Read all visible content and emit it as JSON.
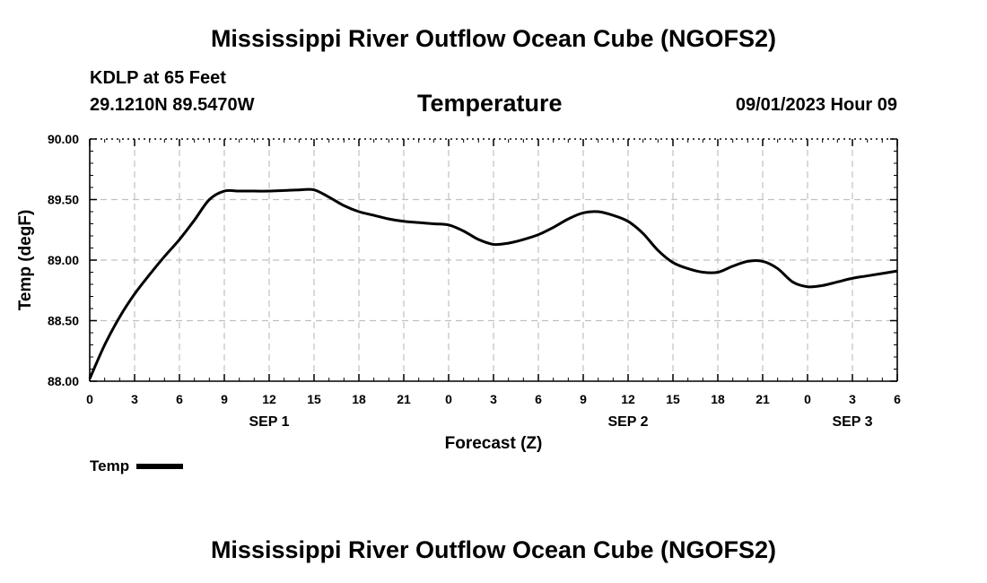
{
  "header": {
    "title": "Mississippi River Outflow Ocean Cube (NGOFS2)",
    "station": "KDLP at 65 Feet",
    "coords": "29.1210N  89.5470W",
    "subtitle": "Temperature",
    "datestamp": "09/01/2023 Hour 09"
  },
  "footer": {
    "title": "Mississippi River Outflow Ocean Cube (NGOFS2)"
  },
  "legend": {
    "label": "Temp"
  },
  "colors": {
    "line": "#000000",
    "grid": "#c0c0c0",
    "background": "#ffffff"
  },
  "chart_data": {
    "type": "line",
    "title": "Temperature",
    "xlabel": "Forecast (Z)",
    "ylabel": "Temp (degF)",
    "xlim": [
      0,
      54
    ],
    "ylim": [
      88.0,
      90.0
    ],
    "x_ticks": [
      0,
      3,
      6,
      9,
      12,
      15,
      18,
      21,
      24,
      27,
      30,
      33,
      36,
      39,
      42,
      45,
      48,
      51,
      54
    ],
    "x_tick_labels": [
      "0",
      "3",
      "6",
      "9",
      "12",
      "15",
      "18",
      "21",
      "0",
      "3",
      "6",
      "9",
      "12",
      "15",
      "18",
      "21",
      "0",
      "3",
      "6"
    ],
    "y_ticks": [
      88.0,
      88.5,
      89.0,
      89.5,
      90.0
    ],
    "y_tick_labels": [
      "88.00",
      "88.50",
      "89.00",
      "89.50",
      "90.00"
    ],
    "day_labels": [
      {
        "x": 12,
        "label": "SEP 1"
      },
      {
        "x": 36,
        "label": "SEP 2"
      },
      {
        "x": 51,
        "label": "SEP 3"
      }
    ],
    "grid": true,
    "series": [
      {
        "name": "Temp",
        "x": [
          0,
          1,
          2,
          3,
          4,
          5,
          6,
          7,
          8,
          9,
          10,
          11,
          12,
          13,
          14,
          15,
          16,
          17,
          18,
          19,
          20,
          21,
          22,
          23,
          24,
          25,
          26,
          27,
          28,
          29,
          30,
          31,
          32,
          33,
          34,
          35,
          36,
          37,
          38,
          39,
          40,
          41,
          42,
          43,
          44,
          45,
          46,
          47,
          48,
          49,
          50,
          51,
          52,
          53,
          54
        ],
        "values": [
          88.02,
          88.3,
          88.53,
          88.72,
          88.88,
          89.03,
          89.17,
          89.33,
          89.5,
          89.57,
          89.57,
          89.57,
          89.57,
          89.575,
          89.58,
          89.58,
          89.52,
          89.45,
          89.4,
          89.37,
          89.34,
          89.32,
          89.31,
          89.3,
          89.29,
          89.24,
          89.17,
          89.13,
          89.14,
          89.17,
          89.21,
          89.27,
          89.34,
          89.39,
          89.4,
          89.37,
          89.32,
          89.22,
          89.08,
          88.98,
          88.93,
          88.9,
          88.9,
          88.95,
          88.99,
          88.99,
          88.93,
          88.82,
          88.78,
          88.79,
          88.82,
          88.85,
          88.87,
          88.89,
          88.91
        ]
      }
    ]
  }
}
